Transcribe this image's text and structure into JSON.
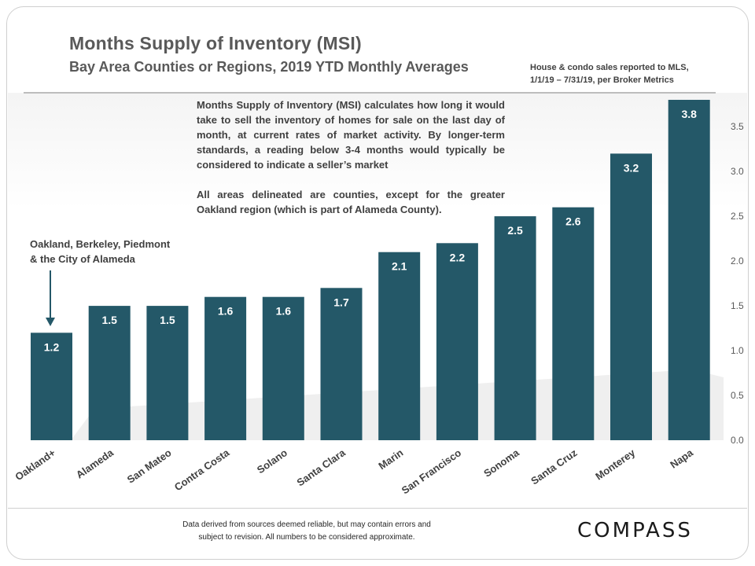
{
  "title": "Months Supply of Inventory (MSI)",
  "subtitle": "Bay Area Counties or Regions, 2019 YTD Monthly Averages",
  "source_note": [
    "House & condo sales reported to MLS,",
    "1/1/19 – 7/31/19, per Broker Metrics"
  ],
  "description": [
    "Months Supply of Inventory (MSI) calculates how long it would take to sell the inventory of homes for sale on the last day of month, at current rates of market activity. By longer-term standards, a reading below 3-4 months would typically be considered to indicate a seller’s market",
    "All areas delineated are counties, except for the greater Oakland region (which is part of Alameda County)."
  ],
  "annotation": [
    "Oakland, Berkeley, Piedmont",
    "& the City of Alameda"
  ],
  "footer": [
    "Data derived from sources deemed reliable, but may contain errors and",
    "subject to revision. All numbers to be considered approximate."
  ],
  "logo": "COMPASS",
  "colors": {
    "bar": "#245868",
    "text": "#595959",
    "label": "#ffffff"
  },
  "chart_data": {
    "type": "bar",
    "categories": [
      "Oakland+",
      "Alameda",
      "San Mateo",
      "Contra Costa",
      "Solano",
      "Santa Clara",
      "Marin",
      "San Francisco",
      "Sonoma",
      "Santa Cruz",
      "Monterey",
      "Napa"
    ],
    "values": [
      1.2,
      1.5,
      1.5,
      1.6,
      1.6,
      1.7,
      2.1,
      2.2,
      2.5,
      2.6,
      3.2,
      3.8
    ],
    "data_labels": [
      "1.2",
      "1.5",
      "1.5",
      "1.6",
      "1.6",
      "1.7",
      "2.1",
      "2.2",
      "2.5",
      "2.6",
      "3.2",
      "3.8"
    ],
    "ylim": [
      0,
      3.8
    ],
    "yticks": [
      0.0,
      0.5,
      1.0,
      1.5,
      2.0,
      2.5,
      3.0,
      3.5
    ],
    "ytick_labels": [
      "0.0",
      "0.5",
      "1.0",
      "1.5",
      "2.0",
      "2.5",
      "3.0",
      "3.5"
    ],
    "yaxis_position": "right",
    "grid": false,
    "legend": "none",
    "xlabel": "",
    "ylabel": ""
  }
}
